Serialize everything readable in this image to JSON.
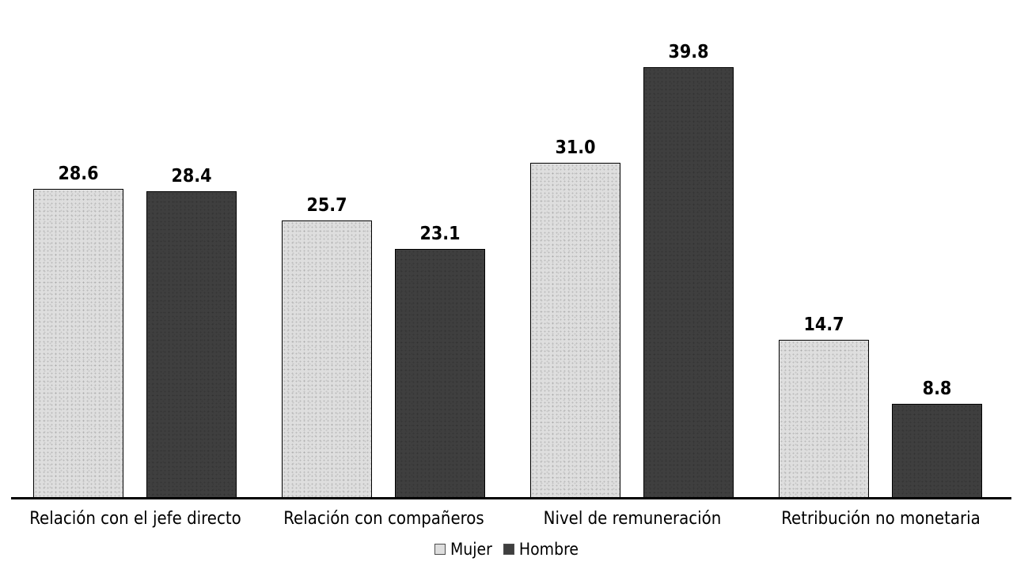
{
  "chart_data": {
    "type": "bar",
    "title": "",
    "xlabel": "",
    "ylabel": "",
    "categories": [
      "Relación con el jefe directo",
      "Relación con compañeros",
      "Nivel de remuneración",
      "Retribución no monetaria"
    ],
    "series": [
      {
        "name": "Mujer",
        "values": [
          28.6,
          25.7,
          31.0,
          14.7
        ],
        "color": "#dedede"
      },
      {
        "name": "Hombre",
        "values": [
          28.4,
          23.1,
          39.8,
          8.8
        ],
        "color": "#3f3f3f"
      }
    ],
    "value_labels": [
      [
        "28.6",
        "28.4"
      ],
      [
        "25.7",
        "23.1"
      ],
      [
        "31.0",
        "39.8"
      ],
      [
        "14.7",
        "8.8"
      ]
    ],
    "value_label_decimals": 1,
    "ylim": [
      0,
      43.5
    ],
    "grid": false,
    "legend_position": "bottom-center",
    "legend_labels": [
      "Mujer",
      "Hombre"
    ],
    "colors": {
      "bar_mujer": "#dedede",
      "bar_hombre": "#3f3f3f",
      "bar_border": "#000000",
      "axis_line": "#000000",
      "text": "#000000",
      "background": "#ffffff"
    }
  }
}
